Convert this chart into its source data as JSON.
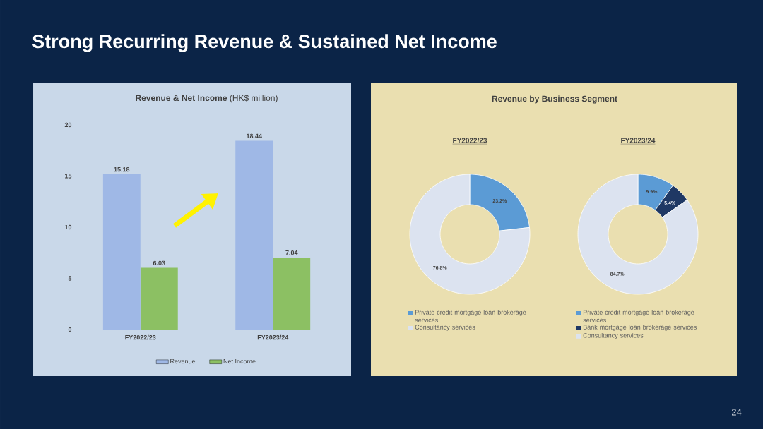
{
  "chart_data": [
    {
      "type": "bar",
      "title": "**Revenue & Net Income** (HK$ million)",
      "categories": [
        "FY2022/23",
        "FY2023/24"
      ],
      "series": [
        {
          "name": "Revenue",
          "color": "#9fb8e6",
          "values": [
            15.18,
            18.44
          ]
        },
        {
          "name": "Net Income",
          "color": "#8cc063",
          "values": [
            6.03,
            7.04
          ]
        }
      ],
      "ylim": [
        0,
        20
      ],
      "yticks": [
        0,
        5,
        10,
        15,
        20
      ],
      "data_labels": true,
      "legend": "bottom",
      "annotations": [
        "Strong Recurring Revenue & Sustained Net Income",
        "24"
      ]
    },
    {
      "type": "donut",
      "title": "Revenue by Business Segment",
      "subtitle": "FY2022/23",
      "categories": [
        "Private credit mortgage loan brokerage services",
        "Consultancy services"
      ],
      "values": [
        23.2,
        76.8
      ],
      "colors": [
        "#5b9bd5",
        "#dce3f0"
      ],
      "value_labels": [
        "23.2%",
        "76.8%"
      ],
      "legend": "bottom"
    },
    {
      "type": "donut",
      "title": "FY2023/24",
      "categories": [
        "Private credit mortgage loan brokerage services",
        "Bank mortgage loan brokerage services",
        "Consultancy services"
      ],
      "values": [
        9.9,
        5.4,
        84.7
      ],
      "colors": [
        "#5b9bd5",
        "#1f3864",
        "#dce3f0"
      ],
      "value_labels": [
        "9.9%",
        "5.4%",
        "84.7%"
      ],
      "legend": "bottom"
    }
  ]
}
